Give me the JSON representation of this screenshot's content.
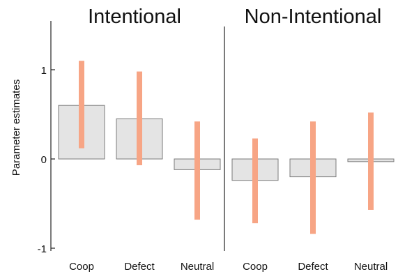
{
  "chart_data": {
    "type": "bar",
    "ylabel": "Parameter estimates",
    "ylim": [
      -1,
      1.5
    ],
    "yticks": [
      -1,
      0,
      1
    ],
    "grid": false,
    "bar_color": "#e4e4e4",
    "bar_edge_color": "#7a7a7a",
    "error_color": "#f7a585",
    "panels": [
      {
        "title": "Intentional",
        "categories": [
          "Coop",
          "Defect",
          "Neutral"
        ],
        "values": [
          0.6,
          0.45,
          -0.12
        ],
        "error_low": [
          0.12,
          -0.07,
          -0.68
        ],
        "error_high": [
          1.1,
          0.98,
          0.42
        ]
      },
      {
        "title": "Non-Intentional",
        "categories": [
          "Coop",
          "Defect",
          "Neutral"
        ],
        "values": [
          -0.24,
          -0.2,
          -0.03
        ],
        "error_low": [
          -0.72,
          -0.84,
          -0.57
        ],
        "error_high": [
          0.23,
          0.42,
          0.52
        ]
      }
    ]
  }
}
